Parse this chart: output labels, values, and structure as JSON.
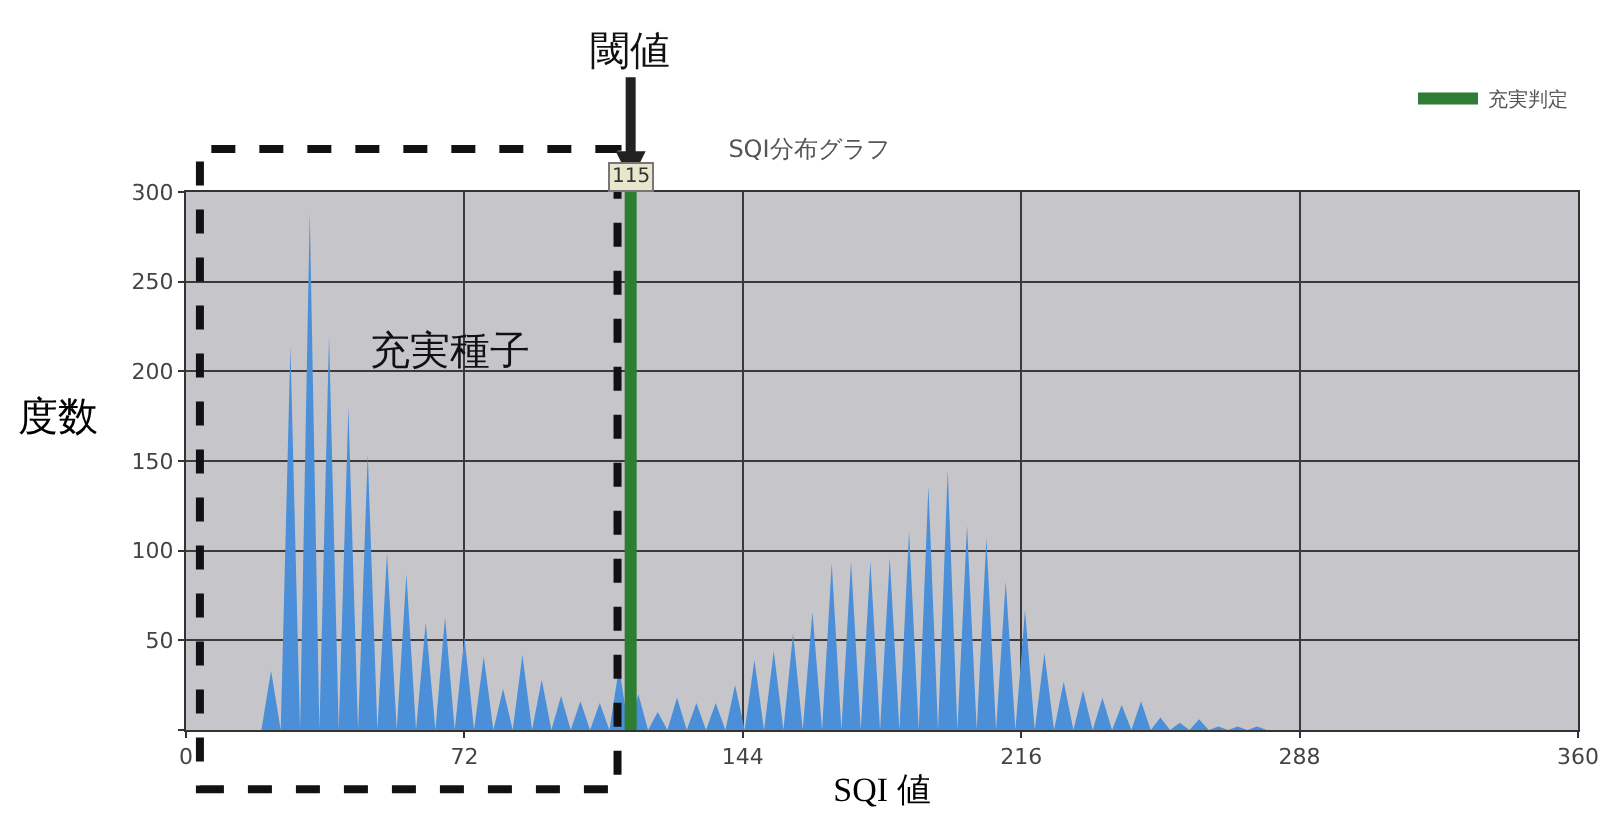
{
  "chart_data": {
    "type": "area",
    "title": "SQI分布グラフ",
    "xlabel": "SQI 値",
    "ylabel": "度数",
    "xlim": [
      0,
      360
    ],
    "xticks": [
      0,
      72,
      144,
      216,
      288,
      360
    ],
    "ylim": [
      0,
      300
    ],
    "yticks": [
      {
        "value": 0,
        "label": null
      },
      50,
      100,
      150,
      200,
      250,
      300
    ],
    "grid": true,
    "legend": "top right",
    "series": [
      {
        "color": "#4a8fd8",
        "x": [
          19.5,
          22,
          24.5,
          27,
          29.5,
          32,
          34.5,
          37,
          39.5,
          42,
          44.5,
          47,
          49.5,
          52,
          54.5,
          57,
          59.5,
          62,
          64.5,
          67,
          69.5,
          72,
          74.5,
          77,
          79.5,
          82,
          84.5,
          87,
          89.5,
          92,
          94.5,
          97,
          99.5,
          102,
          104.5,
          107,
          109.5,
          112,
          114.5,
          117,
          119.5,
          122,
          124.5,
          127,
          129.5,
          132,
          134.5,
          137,
          139.5,
          142,
          144.5,
          147,
          149.5,
          152,
          154.5,
          157,
          159.5,
          162,
          164.5,
          167,
          169.5,
          172,
          174.5,
          177,
          179.5,
          182,
          184.5,
          187,
          189.5,
          192,
          194.5,
          197,
          199.5,
          202,
          204.5,
          207,
          209.5,
          212,
          214.5,
          217,
          219.5,
          222,
          224.5,
          227,
          229.5,
          232,
          234.5,
          237,
          239.5,
          242,
          244.5,
          247,
          249.5,
          252,
          254.5,
          257,
          259.5,
          262,
          264.5,
          267,
          269.5,
          272,
          274.5,
          277,
          279.5
        ],
        "values": [
          0,
          33,
          0,
          214,
          0,
          289,
          0,
          220,
          0,
          180,
          0,
          154,
          0,
          99,
          0,
          87,
          0,
          60,
          0,
          63,
          0,
          52,
          0,
          41,
          0,
          23,
          0,
          42,
          0,
          28,
          0,
          19,
          0,
          16,
          0,
          15,
          0,
          35,
          0,
          20,
          0,
          10,
          0,
          18,
          0,
          15,
          0,
          15,
          0,
          25,
          0,
          39,
          0,
          44,
          0,
          54,
          0,
          66,
          0,
          93,
          0,
          94,
          0,
          94,
          0,
          96,
          0,
          111,
          0,
          136,
          0,
          145,
          0,
          114,
          0,
          107,
          0,
          83,
          0,
          67,
          0,
          43,
          0,
          27,
          0,
          22,
          0,
          18,
          0,
          14,
          0,
          16,
          0,
          7,
          0,
          4,
          0,
          6,
          0,
          2,
          0,
          2,
          0,
          2,
          0
        ]
      },
      {
        "type": "line",
        "name": "充実判定",
        "color": "#2e7d32",
        "x": [
          115,
          115
        ],
        "values": [
          0,
          300
        ]
      }
    ],
    "annotations": [
      "閾値",
      "充実種子",
      {
        "text": "115",
        "x": 115,
        "y": 300
      }
    ]
  }
}
